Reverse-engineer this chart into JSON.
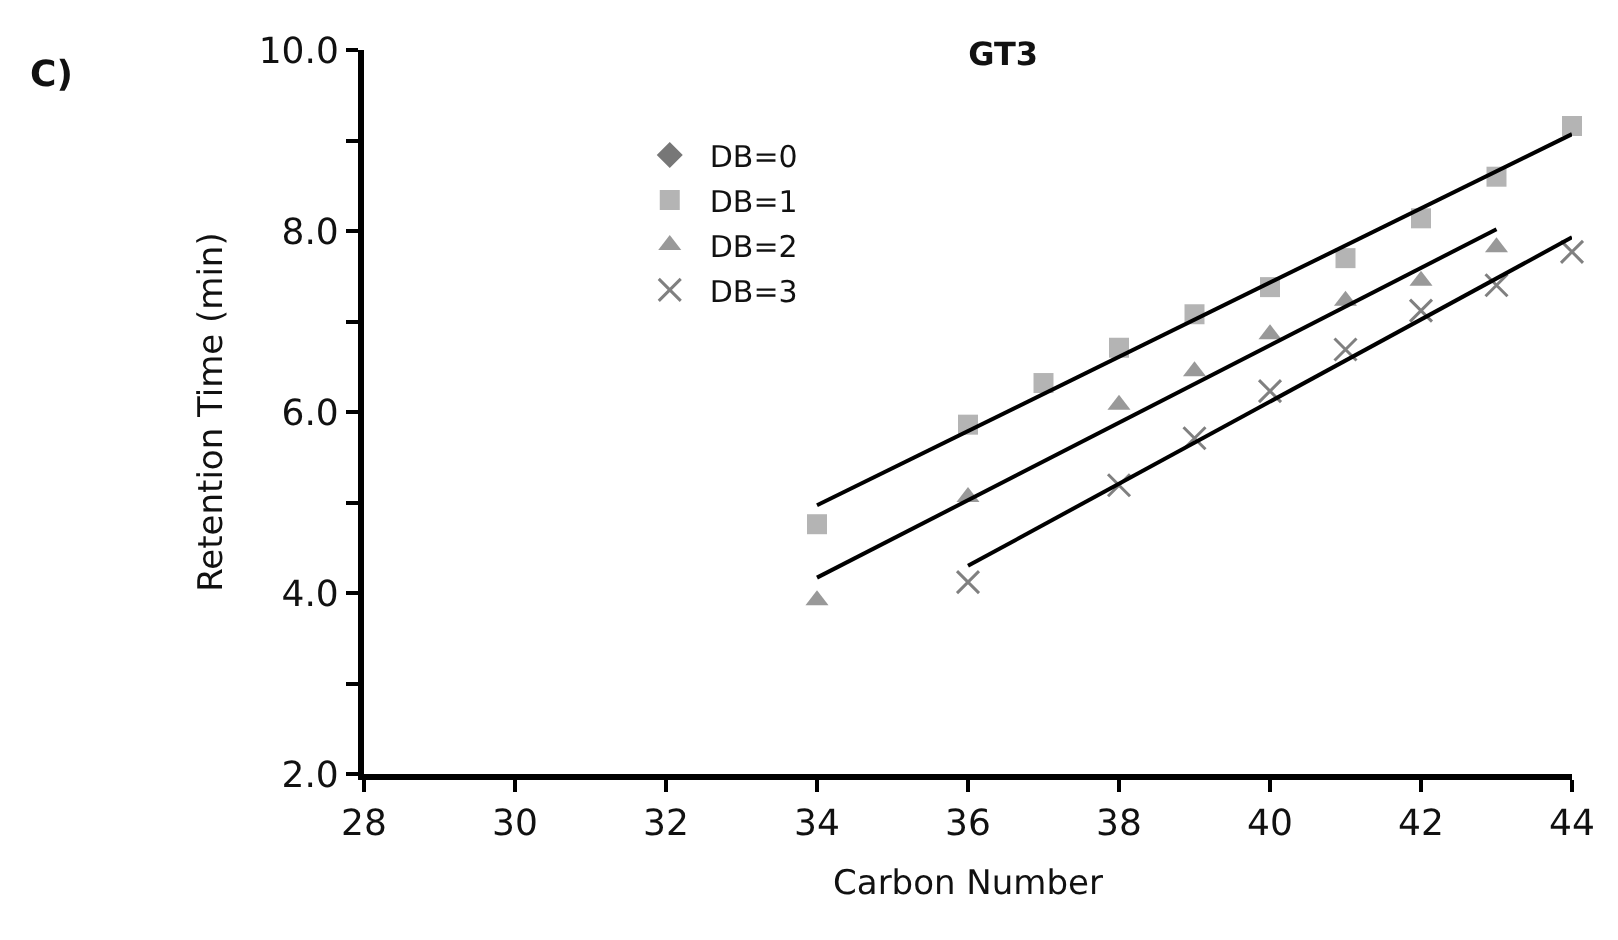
{
  "chart_data": {
    "type": "scatter",
    "title": "GT3",
    "xlabel": "Carbon Number",
    "ylabel": "Retention Time (min)",
    "annotations": [
      "C)"
    ],
    "xlim": [
      28,
      44
    ],
    "xticks": [
      28,
      30,
      32,
      34,
      36,
      38,
      40,
      42,
      44
    ],
    "ylim": [
      2,
      10
    ],
    "yticks": [
      {
        "value": 2,
        "label": "2.0"
      },
      {
        "value": 3,
        "label": null
      },
      {
        "value": 4,
        "label": "4.0"
      },
      {
        "value": 5,
        "label": null
      },
      {
        "value": 6,
        "label": "6.0"
      },
      {
        "value": 7,
        "label": null
      },
      {
        "value": 8,
        "label": "8.0"
      },
      {
        "value": 9,
        "label": null
      },
      {
        "value": 10,
        "label": "10.0"
      }
    ],
    "legend": "top left",
    "series": [
      {
        "name": "DB=0",
        "color": "#777777",
        "marker": "diamond"
      },
      {
        "name": "DB=1",
        "color": "#b4b4b4",
        "marker": "square",
        "x": [
          34,
          36,
          37,
          38,
          39,
          40,
          41,
          42,
          43,
          44
        ],
        "values": [
          4.76,
          5.86,
          6.32,
          6.71,
          7.08,
          7.38,
          7.7,
          8.14,
          8.6,
          9.16
        ]
      },
      {
        "name": "DB=2",
        "color": "#999999",
        "marker": "triangle",
        "x": [
          34,
          36,
          38,
          39,
          40,
          41,
          42,
          43
        ],
        "values": [
          3.92,
          5.06,
          6.08,
          6.45,
          6.86,
          7.23,
          7.45,
          7.82
        ]
      },
      {
        "name": "DB=3",
        "color": "#808080",
        "marker": "cross",
        "x": [
          36,
          38,
          39,
          40,
          41,
          42,
          43,
          44
        ],
        "values": [
          4.12,
          5.19,
          5.71,
          6.23,
          6.69,
          7.12,
          7.4,
          7.77
        ]
      },
      {
        "type": "line",
        "color": "#000000",
        "marker": "none",
        "line_style": "solid",
        "x": [
          34,
          44
        ],
        "values": [
          4.97,
          9.07
        ]
      },
      {
        "type": "line",
        "color": "#000000",
        "marker": "none",
        "line_style": "solid",
        "x": [
          34,
          43
        ],
        "values": [
          4.17,
          8.02
        ]
      },
      {
        "type": "line",
        "color": "#000000",
        "marker": "none",
        "line_style": "solid",
        "x": [
          36,
          44
        ],
        "values": [
          4.3,
          7.93
        ]
      }
    ]
  }
}
